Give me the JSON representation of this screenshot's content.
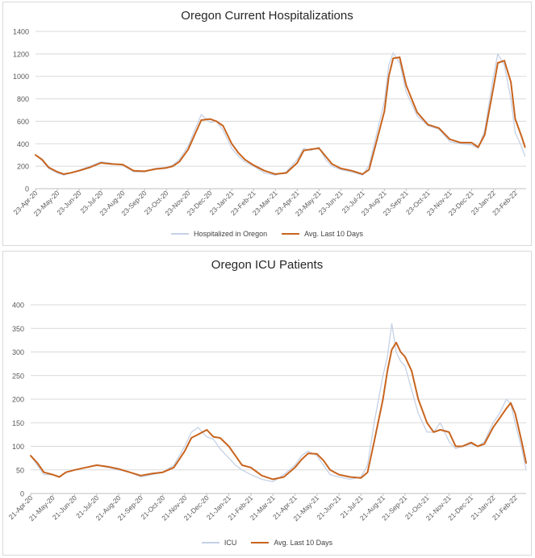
{
  "colors": {
    "raw": "#c5d1e6",
    "avg": "#c8641e",
    "grid": "#d9d9d9",
    "axis": "#bfbfbf",
    "text": "#595959"
  },
  "chart_data": [
    {
      "type": "line",
      "title": "Oregon Current Hospitalizations",
      "xlabel": "",
      "ylabel": "",
      "ylim": [
        0,
        1400
      ],
      "yticks": [
        0,
        200,
        400,
        600,
        800,
        1000,
        1200,
        1400
      ],
      "categories": [
        "23-Apr-20",
        "23-May-20",
        "23-Jun-20",
        "23-Jul-20",
        "23-Aug-20",
        "23-Sep-20",
        "23-Oct-20",
        "23-Nov-20",
        "23-Dec-20",
        "23-Jan-21",
        "23-Feb-21",
        "23-Mar-21",
        "23-Apr-21",
        "23-May-21",
        "23-Jun-21",
        "23-Jul-21",
        "23-Aug-21",
        "23-Sep-21",
        "23-Oct-21",
        "23-Nov-21",
        "23-Dec-21",
        "23-Jan-22",
        "23-Feb-22"
      ],
      "legend": "bottom",
      "series": [
        {
          "name": "Hospitalized in Oregon",
          "color": "#c5d1e6",
          "width": 1.3,
          "x": [
            0,
            0.3,
            0.6,
            1,
            1.3,
            1.6,
            2,
            2.5,
            3,
            3.5,
            4,
            4.5,
            5,
            5.5,
            6,
            6.3,
            6.6,
            7,
            7.3,
            7.6,
            8,
            8.3,
            8.6,
            9,
            9.3,
            9.6,
            10,
            10.5,
            11,
            11.5,
            12,
            12.3,
            12.6,
            13,
            13.3,
            13.6,
            14,
            14.5,
            15,
            15.3,
            15.6,
            16,
            16.2,
            16.4,
            16.7,
            17,
            17.5,
            18,
            18.5,
            19,
            19.5,
            20,
            20.3,
            20.6,
            21,
            21.2,
            21.5,
            21.8,
            22,
            22.3,
            22.45
          ],
          "values": [
            300,
            250,
            180,
            140,
            120,
            140,
            165,
            200,
            240,
            225,
            210,
            150,
            150,
            180,
            190,
            210,
            260,
            380,
            520,
            660,
            590,
            600,
            520,
            360,
            290,
            240,
            200,
            140,
            120,
            150,
            260,
            360,
            340,
            370,
            260,
            200,
            170,
            150,
            120,
            210,
            450,
            780,
            1100,
            1210,
            1120,
            860,
            650,
            560,
            530,
            420,
            400,
            390,
            360,
            520,
            1000,
            1200,
            1100,
            800,
            500,
            370,
            290
          ]
        },
        {
          "name": "Avg. Last 10 Days",
          "color": "#c8641e",
          "width": 2,
          "x": [
            0,
            0.3,
            0.6,
            1,
            1.3,
            1.6,
            2,
            2.5,
            3,
            3.5,
            4,
            4.5,
            5,
            5.5,
            6,
            6.3,
            6.6,
            7,
            7.3,
            7.6,
            8,
            8.3,
            8.6,
            9,
            9.3,
            9.6,
            10,
            10.5,
            11,
            11.5,
            12,
            12.3,
            12.6,
            13,
            13.3,
            13.6,
            14,
            14.5,
            15,
            15.3,
            15.6,
            16,
            16.2,
            16.4,
            16.7,
            17,
            17.5,
            18,
            18.5,
            19,
            19.5,
            20,
            20.3,
            20.6,
            21,
            21.2,
            21.5,
            21.8,
            22,
            22.3,
            22.45
          ],
          "values": [
            300,
            260,
            190,
            150,
            130,
            140,
            160,
            190,
            230,
            220,
            215,
            160,
            155,
            175,
            185,
            200,
            240,
            350,
            480,
            610,
            620,
            600,
            560,
            400,
            320,
            260,
            210,
            160,
            130,
            140,
            230,
            340,
            350,
            360,
            290,
            220,
            180,
            160,
            130,
            170,
            390,
            690,
            1000,
            1160,
            1170,
            920,
            680,
            570,
            540,
            440,
            410,
            410,
            370,
            480,
            900,
            1120,
            1140,
            950,
            620,
            460,
            370
          ]
        }
      ],
      "legend_labels": [
        "Hospitalized in Oregon",
        "Avg. Last 10 Days"
      ]
    },
    {
      "type": "line",
      "title": "Oregon ICU Patients",
      "xlabel": "",
      "ylabel": "",
      "ylim": [
        0,
        400
      ],
      "yticks": [
        0,
        50,
        100,
        150,
        200,
        250,
        300,
        350,
        400
      ],
      "categories": [
        "21-Apr-20",
        "21-May-20",
        "21-Jun-20",
        "21-Jul-20",
        "21-Aug-20",
        "21-Sep-20",
        "21-Oct-20",
        "21-Nov-20",
        "21-Dec-20",
        "21-Jan-21",
        "21-Feb-21",
        "21-Mar-21",
        "21-Apr-21",
        "21-May-21",
        "21-Jun-21",
        "21-Jul-21",
        "21-Aug-21",
        "21-Sep-21",
        "21-Oct-21",
        "21-Nov-21",
        "21-Dec-21",
        "21-Jan-22",
        "21-Feb-22"
      ],
      "legend": "bottom",
      "series": [
        {
          "name": "ICU",
          "color": "#c5d1e6",
          "width": 1.3,
          "x": [
            0,
            0.3,
            0.6,
            1,
            1.3,
            1.6,
            2,
            2.5,
            3,
            3.5,
            4,
            4.5,
            5,
            5.5,
            6,
            6.5,
            7,
            7.3,
            7.6,
            8,
            8.3,
            8.6,
            9,
            9.3,
            9.6,
            10,
            10.5,
            11,
            11.5,
            12,
            12.3,
            12.6,
            13,
            13.3,
            13.6,
            14,
            14.5,
            15,
            15.3,
            15.6,
            16,
            16.2,
            16.4,
            16.6,
            16.8,
            17,
            17.3,
            17.6,
            18,
            18.3,
            18.6,
            19,
            19.3,
            19.6,
            20,
            20.3,
            20.6,
            21,
            21.3,
            21.6,
            21.8,
            22,
            22.3,
            22.5
          ],
          "values": [
            80,
            60,
            40,
            40,
            35,
            45,
            50,
            55,
            60,
            55,
            50,
            45,
            35,
            40,
            45,
            60,
            100,
            130,
            140,
            120,
            115,
            95,
            75,
            60,
            50,
            40,
            30,
            25,
            40,
            60,
            80,
            90,
            80,
            60,
            40,
            35,
            30,
            35,
            60,
            150,
            250,
            290,
            360,
            300,
            280,
            270,
            220,
            170,
            130,
            130,
            150,
            110,
            95,
            100,
            105,
            100,
            110,
            150,
            170,
            200,
            190,
            150,
            95,
            50
          ]
        },
        {
          "name": "Avg. Last 10 Days",
          "color": "#c8641e",
          "width": 2,
          "x": [
            0,
            0.3,
            0.6,
            1,
            1.3,
            1.6,
            2,
            2.5,
            3,
            3.5,
            4,
            4.5,
            5,
            5.5,
            6,
            6.5,
            7,
            7.3,
            7.6,
            8,
            8.3,
            8.6,
            9,
            9.3,
            9.6,
            10,
            10.5,
            11,
            11.5,
            12,
            12.3,
            12.6,
            13,
            13.3,
            13.6,
            14,
            14.5,
            15,
            15.3,
            15.6,
            16,
            16.2,
            16.4,
            16.6,
            16.8,
            17,
            17.3,
            17.6,
            18,
            18.3,
            18.6,
            19,
            19.3,
            19.6,
            20,
            20.3,
            20.6,
            21,
            21.3,
            21.6,
            21.8,
            22,
            22.3,
            22.5
          ],
          "values": [
            80,
            65,
            45,
            40,
            35,
            45,
            50,
            55,
            60,
            57,
            52,
            45,
            38,
            42,
            45,
            55,
            90,
            118,
            125,
            135,
            120,
            118,
            100,
            80,
            60,
            55,
            38,
            30,
            35,
            55,
            72,
            85,
            84,
            70,
            50,
            40,
            35,
            33,
            45,
            110,
            200,
            260,
            305,
            320,
            300,
            290,
            260,
            200,
            150,
            130,
            135,
            130,
            100,
            100,
            108,
            100,
            105,
            140,
            160,
            180,
            192,
            170,
            110,
            65
          ]
        }
      ],
      "legend_labels": [
        "ICU",
        "Avg. Last 10 Days"
      ]
    }
  ]
}
